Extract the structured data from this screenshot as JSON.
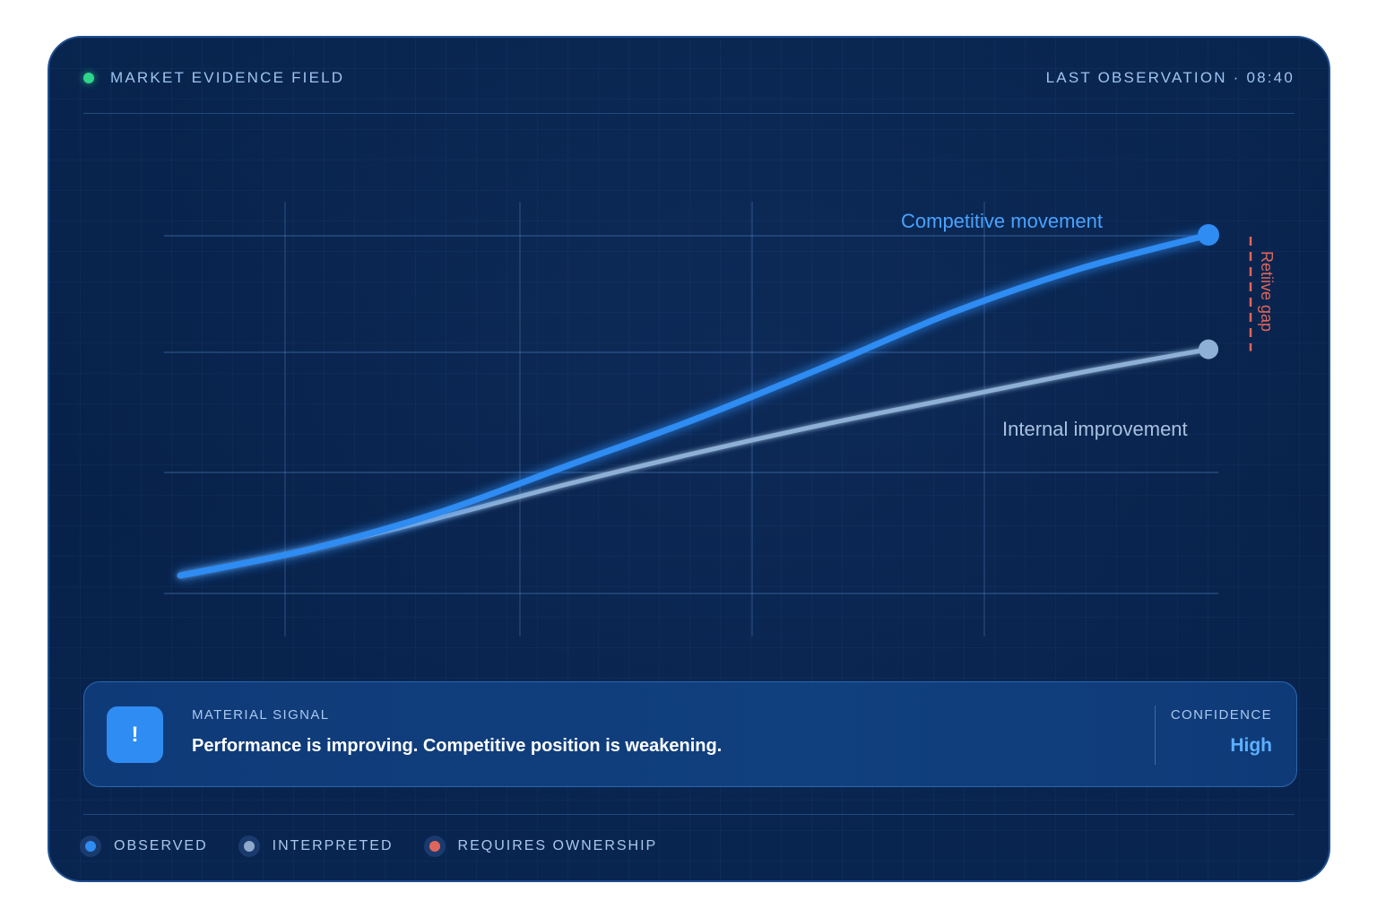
{
  "header": {
    "title": "MARKET EVIDENCE FIELD",
    "last_observation": "LAST OBSERVATION · 08:40",
    "status_color": "#2fd58a"
  },
  "chart_data": {
    "type": "line",
    "x": [
      0,
      1,
      2,
      3,
      4,
      5,
      6,
      7,
      8
    ],
    "series": [
      {
        "name": "Competitive movement",
        "color": "#2f8cf2",
        "values": [
          0.0,
          0.1,
          0.24,
          0.42,
          0.6,
          0.8,
          1.01,
          1.18,
          1.31
        ]
      },
      {
        "name": "Internal improvement",
        "color": "#8fb0d6",
        "values": [
          0.0,
          0.1,
          0.22,
          0.35,
          0.47,
          0.58,
          0.68,
          0.78,
          0.87
        ]
      }
    ],
    "annotation": "Retiive gap",
    "grid": true
  },
  "signal": {
    "label": "MATERIAL SIGNAL",
    "text": "Performance is improving. Competitive position is weakening.",
    "badge_icon": "exclamation-icon",
    "badge_glyph": "!",
    "confidence_label": "CONFIDENCE",
    "confidence_value": "High"
  },
  "legend": {
    "items": [
      {
        "label": "OBSERVED",
        "color": "#2f8cf2"
      },
      {
        "label": "INTERPRETED",
        "color": "#8fa9cc"
      },
      {
        "label": "REQUIRES OWNERSHIP",
        "color": "#e0665a"
      }
    ]
  }
}
